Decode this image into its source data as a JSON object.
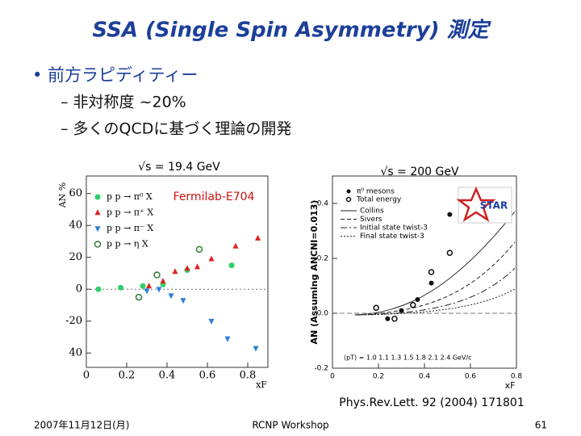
{
  "title": "SSA (Single Spin Asymmetry) 測定",
  "bullets": [
    {
      "text": "• 前方ラピディティー",
      "sub": [
        "– 非対称度 ~20%",
        "– 多くのQCDに基づく理論の開発"
      ]
    }
  ],
  "left_plot": {
    "type": "scatter",
    "label": "√s = 19.4 GeV",
    "annotation": "Fermilab-E704",
    "ylabel": "AN %",
    "xlabel": "xF",
    "xlim": [
      0,
      0.9
    ],
    "ylim": [
      -49,
      71
    ],
    "xticks": [
      0,
      0.2,
      0.4,
      0.6,
      0.8
    ],
    "yticks": [
      60,
      40,
      20,
      0,
      -20,
      {
        "value": -40,
        "label": "40"
      }
    ],
    "series": [
      {
        "name": "p p → π⁰ X",
        "color": "#2fcf6a",
        "marker": "circle",
        "x": [
          0.06,
          0.17,
          0.28,
          0.38,
          0.5,
          0.72
        ],
        "values": [
          0,
          1,
          2,
          3,
          12,
          15
        ]
      },
      {
        "name": "p p → π⁺ X",
        "color": "#e0201c",
        "marker": "triangle-up",
        "x": [
          0.31,
          0.38,
          0.44,
          0.5,
          0.55,
          0.62,
          0.74,
          0.85
        ],
        "values": [
          2,
          5,
          11,
          13,
          14,
          19,
          27,
          32
        ]
      },
      {
        "name": "p p → π⁻ X",
        "color": "#2a7fd8",
        "marker": "triangle-down",
        "x": [
          0.3,
          0.36,
          0.42,
          0.48,
          0.62,
          0.7,
          0.84
        ],
        "values": [
          -1,
          0,
          -4,
          -7,
          -20,
          -31,
          -37
        ]
      },
      {
        "name": "p p → η X",
        "color": "#2e7d32",
        "marker": "open-circle",
        "x": [
          0.26,
          0.35,
          0.56
        ],
        "values": [
          -5,
          9,
          25
        ]
      }
    ]
  },
  "right_plot": {
    "type": "scatter",
    "label": "√s = 200 GeV",
    "ylabel": "AN (Assuming ANCNI=0.013)",
    "xlabel": "xF",
    "logo": "STAR",
    "xlim": [
      0,
      0.8
    ],
    "ylim": [
      -0.2,
      0.5
    ],
    "xticks": [
      0,
      0.2,
      0.4,
      0.6,
      0.8
    ],
    "yticks": [
      0.4,
      0.2,
      {
        "value": 0,
        "label": "0.0"
      },
      -0.2
    ],
    "series": [
      {
        "name": "π⁰ mesons",
        "color": "#111111",
        "marker": "circle",
        "x": [
          0.24,
          0.3,
          0.37,
          0.43,
          0.51
        ],
        "values": [
          -0.02,
          0.01,
          0.05,
          0.11,
          0.36
        ]
      },
      {
        "name": "Total energy",
        "color": "#111111",
        "marker": "open-circle",
        "x": [
          0.19,
          0.27,
          0.35,
          0.43,
          0.51
        ],
        "values": [
          0.02,
          -0.02,
          0.03,
          0.15,
          0.22
        ]
      }
    ],
    "models": [
      "Collins",
      "Sivers",
      "Initial state twist-3",
      "Final state twist-3"
    ],
    "pt_row": "⟨pT⟩ = 1.0  1.1  1.3  1.5  1.8  2.1  2.4  GeV/c"
  },
  "reference": "Phys.Rev.Lett. 92 (2004) 171801",
  "footer": {
    "date": "2007年11月12日(月)",
    "event": "RCNP Workshop",
    "page": "61"
  }
}
